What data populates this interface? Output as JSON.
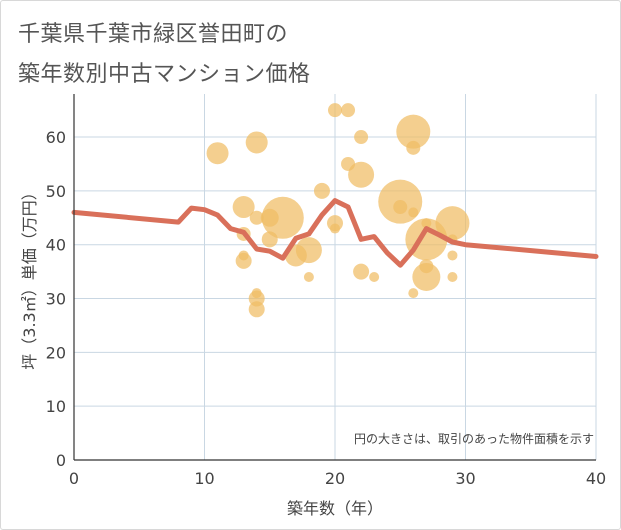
{
  "title_line1": "千葉県千葉市緑区誉田町の",
  "title_line2": "築年数別中古マンション価格",
  "chart_data": {
    "type": "scatter",
    "title": "千葉県千葉市緑区誉田町の築年数別中古マンション価格",
    "xlabel": "築年数（年）",
    "ylabel": "坪（3.3㎡）単価（万円）",
    "xlim": [
      0,
      40
    ],
    "ylim": [
      0,
      68
    ],
    "xticks": [
      0,
      10,
      20,
      30,
      40
    ],
    "yticks": [
      0,
      10,
      20,
      30,
      40,
      50,
      60
    ],
    "grid": true,
    "note": "円の大きさは、取引のあった物件面積を示す",
    "bubble_color": "#f0bc64",
    "line_color": "#d9705a",
    "points": [
      {
        "x": 11,
        "y": 57,
        "size": 11
      },
      {
        "x": 14,
        "y": 59,
        "size": 11
      },
      {
        "x": 13,
        "y": 47,
        "size": 11
      },
      {
        "x": 14,
        "y": 45,
        "size": 7
      },
      {
        "x": 13,
        "y": 42,
        "size": 7
      },
      {
        "x": 13,
        "y": 38,
        "size": 5
      },
      {
        "x": 13,
        "y": 37,
        "size": 8
      },
      {
        "x": 15,
        "y": 45,
        "size": 9
      },
      {
        "x": 15,
        "y": 41,
        "size": 8
      },
      {
        "x": 14,
        "y": 31,
        "size": 5
      },
      {
        "x": 14,
        "y": 30,
        "size": 8
      },
      {
        "x": 14,
        "y": 28,
        "size": 8
      },
      {
        "x": 16,
        "y": 45,
        "size": 21
      },
      {
        "x": 17,
        "y": 38,
        "size": 11
      },
      {
        "x": 18,
        "y": 39,
        "size": 13
      },
      {
        "x": 18,
        "y": 34,
        "size": 5
      },
      {
        "x": 19,
        "y": 50,
        "size": 8
      },
      {
        "x": 20,
        "y": 65,
        "size": 7
      },
      {
        "x": 21,
        "y": 65,
        "size": 7
      },
      {
        "x": 22,
        "y": 60,
        "size": 7
      },
      {
        "x": 21,
        "y": 55,
        "size": 7
      },
      {
        "x": 22,
        "y": 53,
        "size": 13
      },
      {
        "x": 20,
        "y": 44,
        "size": 8
      },
      {
        "x": 20,
        "y": 43,
        "size": 5
      },
      {
        "x": 22,
        "y": 35,
        "size": 8
      },
      {
        "x": 23,
        "y": 34,
        "size": 5
      },
      {
        "x": 25,
        "y": 48,
        "size": 22
      },
      {
        "x": 25,
        "y": 47,
        "size": 7
      },
      {
        "x": 26,
        "y": 61,
        "size": 17
      },
      {
        "x": 26,
        "y": 58,
        "size": 7
      },
      {
        "x": 26,
        "y": 46,
        "size": 5
      },
      {
        "x": 27,
        "y": 44,
        "size": 5
      },
      {
        "x": 27,
        "y": 41,
        "size": 21
      },
      {
        "x": 27,
        "y": 36,
        "size": 7
      },
      {
        "x": 27,
        "y": 34,
        "size": 14
      },
      {
        "x": 26,
        "y": 31,
        "size": 5
      },
      {
        "x": 29,
        "y": 44,
        "size": 17
      },
      {
        "x": 29,
        "y": 41,
        "size": 5
      },
      {
        "x": 29,
        "y": 38,
        "size": 5
      },
      {
        "x": 29,
        "y": 34,
        "size": 5
      }
    ],
    "trend_line": [
      {
        "x": 0,
        "y": 46
      },
      {
        "x": 8,
        "y": 44.2
      },
      {
        "x": 9,
        "y": 46.8
      },
      {
        "x": 10,
        "y": 46.5
      },
      {
        "x": 11,
        "y": 45.5
      },
      {
        "x": 12,
        "y": 43
      },
      {
        "x": 13,
        "y": 42.3
      },
      {
        "x": 14,
        "y": 39.2
      },
      {
        "x": 15,
        "y": 38.8
      },
      {
        "x": 16,
        "y": 37.5
      },
      {
        "x": 17,
        "y": 41.2
      },
      {
        "x": 18,
        "y": 42
      },
      {
        "x": 19,
        "y": 45.5
      },
      {
        "x": 20,
        "y": 48.2
      },
      {
        "x": 21,
        "y": 47
      },
      {
        "x": 22,
        "y": 41
      },
      {
        "x": 23,
        "y": 41.5
      },
      {
        "x": 24,
        "y": 38.5
      },
      {
        "x": 25,
        "y": 36.2
      },
      {
        "x": 26,
        "y": 39
      },
      {
        "x": 27,
        "y": 43
      },
      {
        "x": 28,
        "y": 41.8
      },
      {
        "x": 29,
        "y": 40.5
      },
      {
        "x": 30,
        "y": 40
      },
      {
        "x": 40,
        "y": 37.8
      }
    ]
  }
}
